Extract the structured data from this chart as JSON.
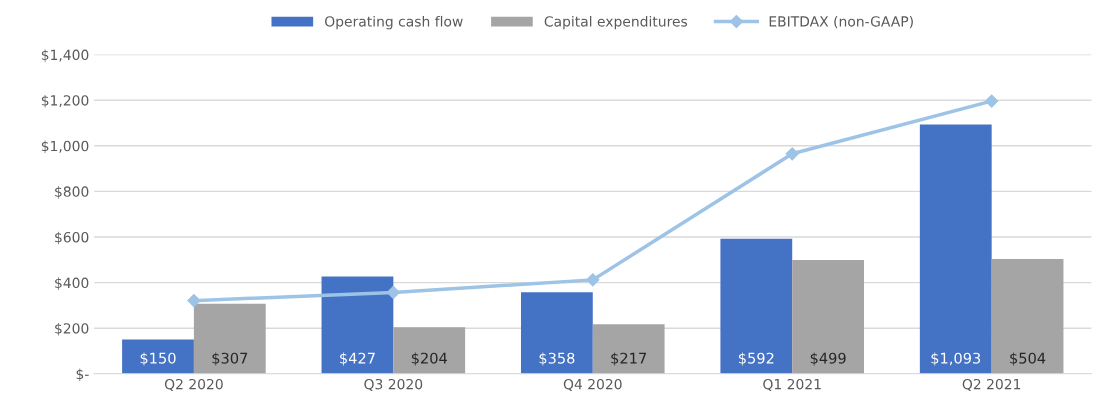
{
  "chart_data": {
    "type": "bar",
    "categories": [
      "Q2 2020",
      "Q3 2020",
      "Q4 2020",
      "Q1 2021",
      "Q2 2021"
    ],
    "series": [
      {
        "name": "Operating cash flow",
        "color": "#4472c4",
        "values": [
          150,
          427,
          358,
          592,
          1093
        ],
        "value_labels": [
          "$150",
          "$427",
          "$358",
          "$592",
          "$1,093"
        ]
      },
      {
        "name": "Capital expenditures",
        "color": "#a5a5a5",
        "values": [
          307,
          204,
          217,
          499,
          504
        ],
        "value_labels": [
          "$307",
          "$204",
          "$217",
          "$499",
          "$504"
        ]
      },
      {
        "name": "EBITDAX (non-GAAP)",
        "type": "line",
        "color": "#9dc3e6",
        "marker": "diamond",
        "values": [
          321,
          357,
          412,
          965,
          1196
        ]
      }
    ],
    "ylim": [
      0,
      1400
    ],
    "yticks": [
      {
        "value": 0,
        "label": "$-"
      },
      {
        "value": 200,
        "label": "$200"
      },
      {
        "value": 400,
        "label": "$400"
      },
      {
        "value": 600,
        "label": "$600"
      },
      {
        "value": 800,
        "label": "$800"
      },
      {
        "value": 1000,
        "label": "$1,000"
      },
      {
        "value": 1200,
        "label": "$1,200"
      },
      {
        "value": 1400,
        "label": "$1,400"
      }
    ],
    "grid": "y",
    "legend": "top"
  }
}
